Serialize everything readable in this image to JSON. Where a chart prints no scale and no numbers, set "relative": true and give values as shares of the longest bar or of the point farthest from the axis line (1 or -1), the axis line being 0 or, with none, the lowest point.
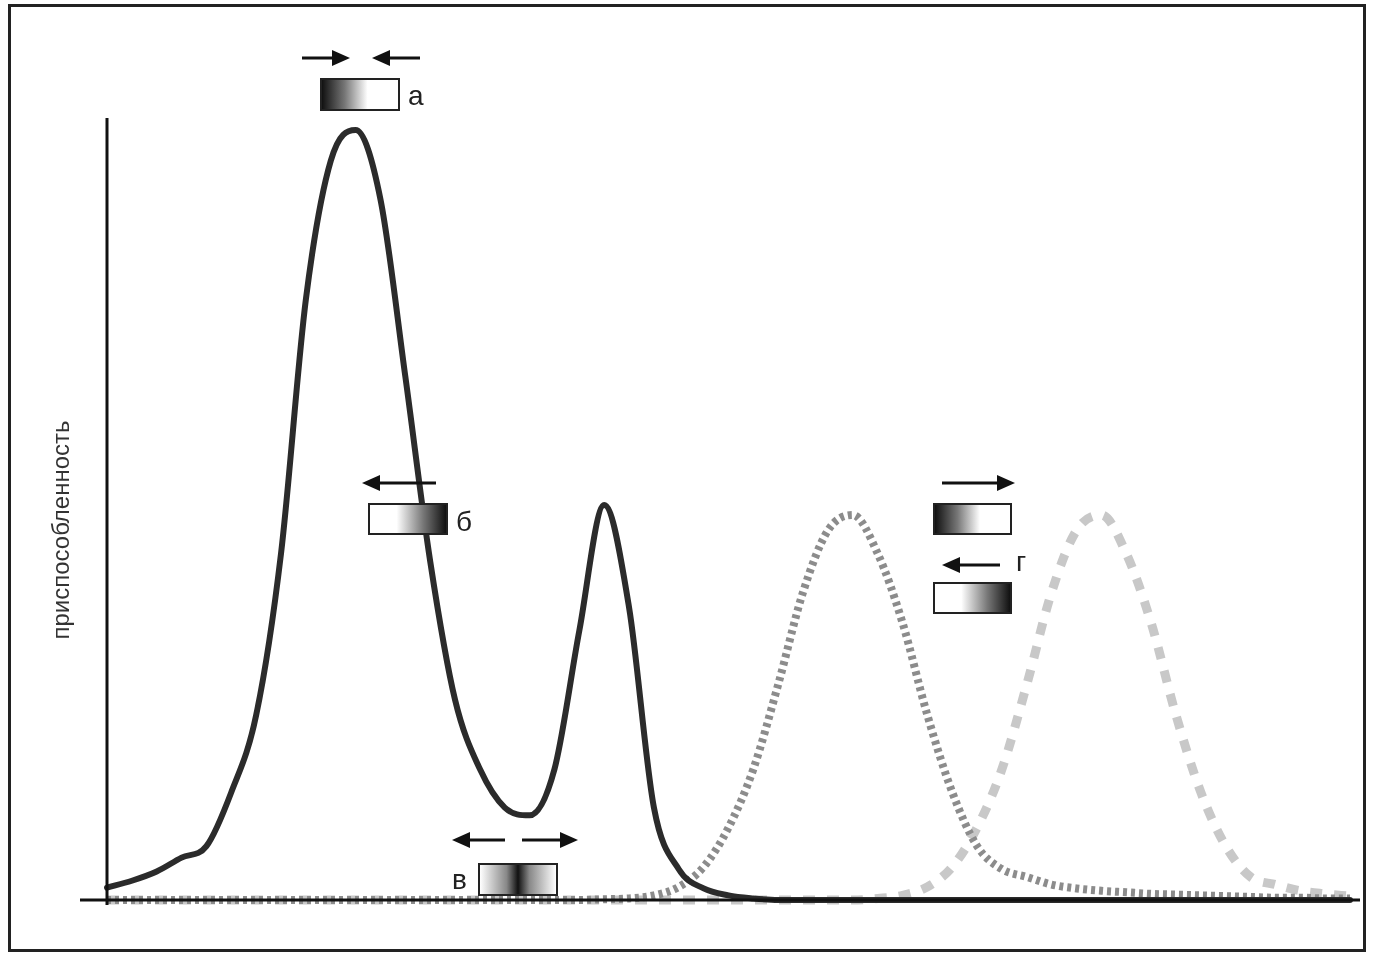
{
  "chart_data": {
    "type": "line",
    "relative": true,
    "ylabel": "приспособленность",
    "marker": "none",
    "legend": false,
    "categories": [
      null,
      null,
      null,
      null,
      null,
      null,
      null,
      null,
      null,
      null,
      null,
      null,
      null,
      null,
      null,
      null,
      null,
      null,
      null,
      null,
      null,
      null,
      null,
      null,
      null,
      null,
      null,
      null,
      null,
      null,
      null,
      null,
      null,
      null,
      null,
      null,
      null,
      null,
      null,
      null,
      null,
      null,
      null,
      null,
      null,
      null,
      null,
      null,
      null,
      null,
      null
    ],
    "series": [
      {
        "color": "#2b2b2b",
        "line_style": "solid",
        "values": [
          0.016,
          0.025,
          0.037,
          0.055,
          0.07,
          0.14,
          0.24,
          0.45,
          0.78,
          0.96,
          1.0,
          0.91,
          0.68,
          0.44,
          0.26,
          0.17,
          0.12,
          0.11,
          0.17,
          0.35,
          0.513,
          0.38,
          0.12,
          0.04,
          0.015,
          0.006,
          0.002,
          0,
          0,
          0,
          0,
          0,
          0,
          0,
          0,
          0,
          0,
          0,
          0,
          0,
          0,
          0,
          0,
          0,
          0,
          0,
          0,
          0,
          0,
          0,
          0
        ]
      },
      {
        "color": "#8c8c8c",
        "line_style": "dotted",
        "values": [
          0,
          0,
          0,
          0,
          0,
          0,
          0,
          0,
          0,
          0,
          0,
          0,
          0,
          0,
          0,
          0,
          0,
          0,
          0,
          0,
          0.001,
          0.002,
          0.006,
          0.017,
          0.043,
          0.094,
          0.17,
          0.28,
          0.4,
          0.48,
          0.5,
          0.45,
          0.36,
          0.24,
          0.14,
          0.07,
          0.04,
          0.03,
          0.02,
          0.015,
          0.012,
          0.01,
          0.008,
          0.007,
          0.006,
          0.005,
          0.004,
          0.003,
          0.003,
          0.002,
          0.002
        ]
      },
      {
        "color": "#c8c8c8",
        "line_style": "dashed",
        "values": [
          0,
          0,
          0,
          0,
          0,
          0,
          0,
          0,
          0,
          0,
          0,
          0,
          0,
          0,
          0,
          0,
          0,
          0,
          0,
          0,
          0,
          0,
          0,
          0,
          0,
          0,
          0,
          0,
          0,
          0,
          0,
          0.002,
          0.006,
          0.017,
          0.043,
          0.094,
          0.17,
          0.28,
          0.4,
          0.48,
          0.5,
          0.45,
          0.36,
          0.24,
          0.14,
          0.07,
          0.03,
          0.02,
          0.012,
          0.008,
          0.005
        ]
      }
    ],
    "annotations": [
      "а",
      "б",
      "в",
      "г"
    ]
  }
}
